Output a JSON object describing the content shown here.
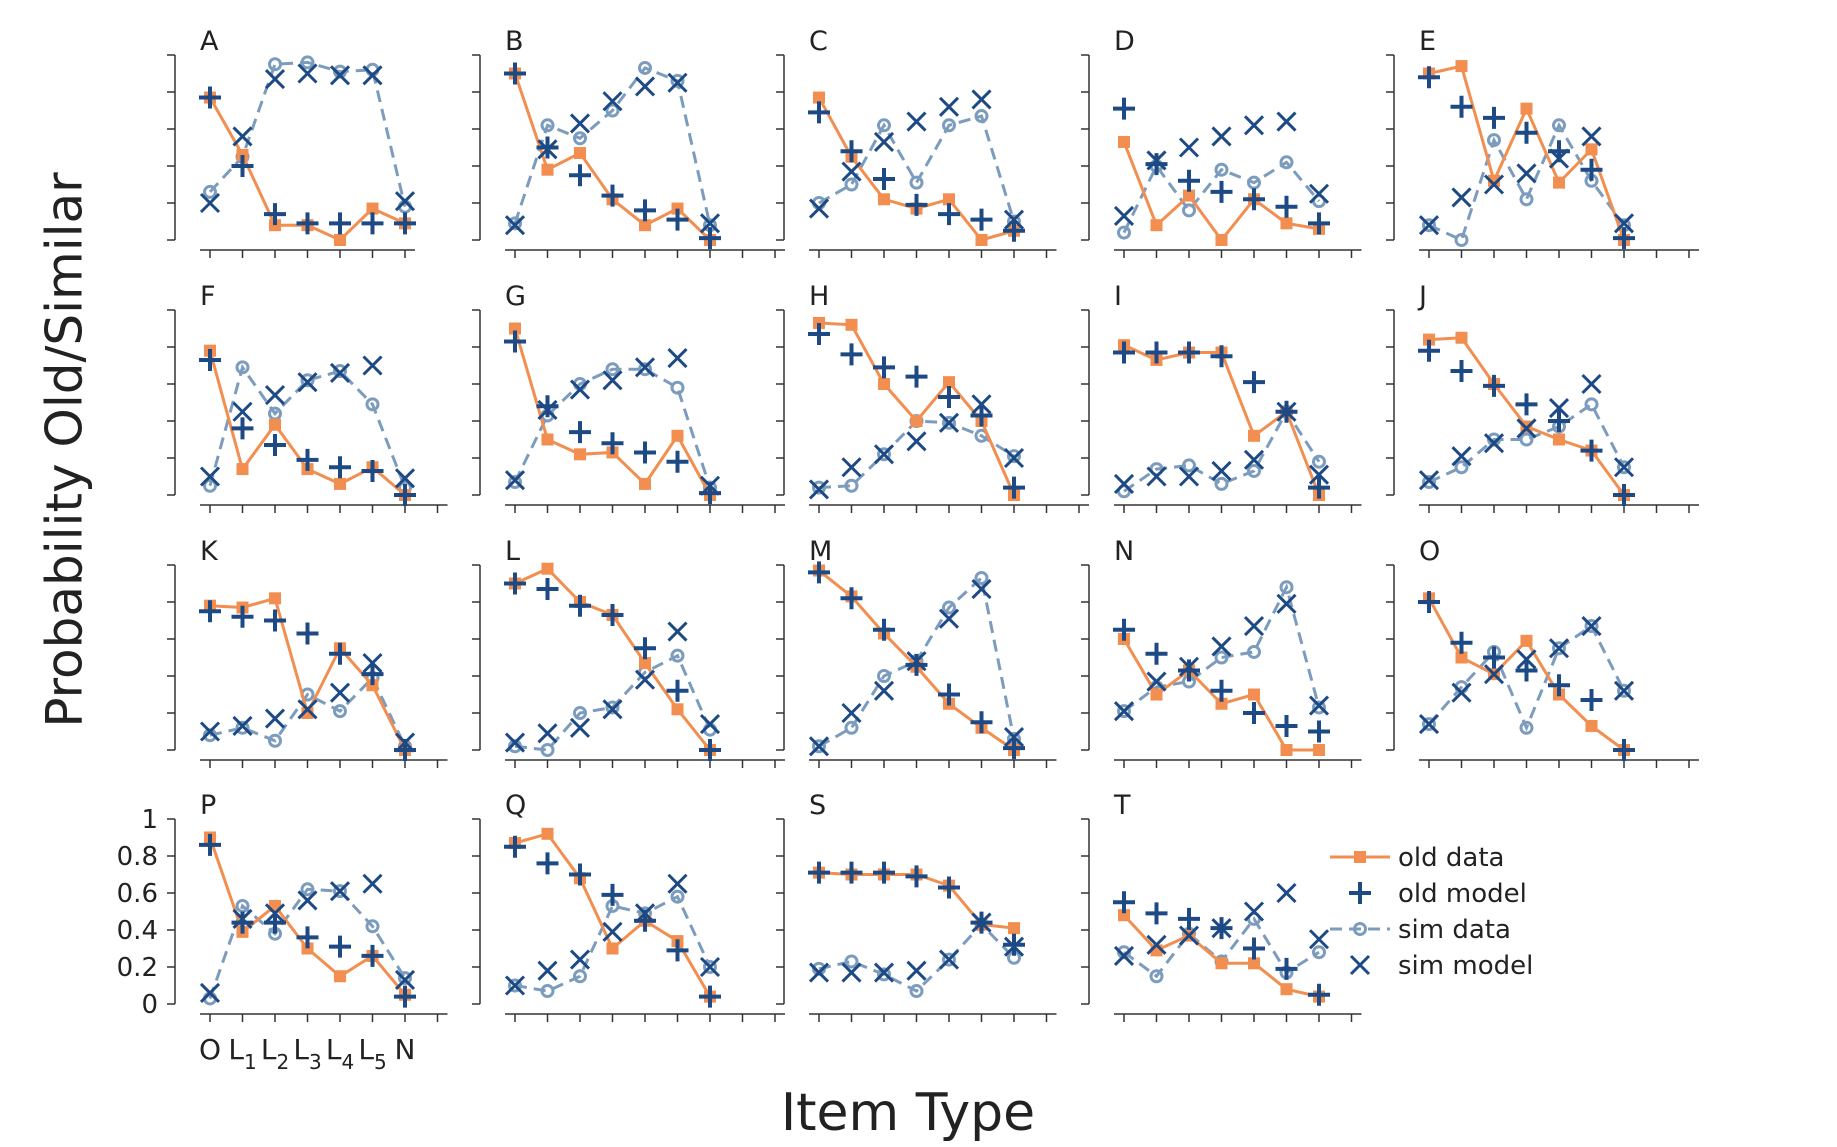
{
  "figure": {
    "ylabel": "Probability Old/Similar",
    "xlabel": "Item Type"
  },
  "legend": {
    "placement": "right of panel T",
    "entries": [
      {
        "key": "old_data",
        "label": "old data"
      },
      {
        "key": "old_model",
        "label": "old model"
      },
      {
        "key": "sim_data",
        "label": "sim data"
      },
      {
        "key": "sim_model",
        "label": "sim model"
      }
    ]
  },
  "styles": {
    "old_data": {
      "color": "#f28e4f",
      "line": "solid",
      "marker": "square"
    },
    "old_model": {
      "color": "#1d4a85",
      "marker": "plus"
    },
    "sim_data": {
      "color": "#7c9cbd",
      "line": "dashed",
      "marker": "circle-open"
    },
    "sim_model": {
      "color": "#1d4a85",
      "marker": "x"
    }
  },
  "chart_data": {
    "type": "line",
    "categories": [
      "O",
      "L1",
      "L2",
      "L3",
      "L4",
      "L5",
      "N"
    ],
    "tick_labels": [
      {
        "base": "O",
        "sub": ""
      },
      {
        "base": "L",
        "sub": "1"
      },
      {
        "base": "L",
        "sub": "2"
      },
      {
        "base": "L",
        "sub": "3"
      },
      {
        "base": "L",
        "sub": "4"
      },
      {
        "base": "L",
        "sub": "5"
      },
      {
        "base": "N",
        "sub": ""
      }
    ],
    "ylim": [
      0,
      1
    ],
    "yticks": [
      "0",
      "0.2",
      "0.4",
      "0.6",
      "0.8",
      "1"
    ],
    "grid": false,
    "panels": [
      {
        "label": "A",
        "n": 7,
        "old_data": [
          0.77,
          0.46,
          0.08,
          0.08,
          0.0,
          0.17,
          0.09
        ],
        "old_model": [
          0.77,
          0.4,
          0.14,
          0.09,
          0.09,
          0.09,
          0.09
        ],
        "sim_data": [
          0.26,
          0.45,
          0.95,
          0.96,
          0.91,
          0.92,
          0.18
        ],
        "sim_model": [
          0.2,
          0.56,
          0.87,
          0.9,
          0.89,
          0.89,
          0.21
        ]
      },
      {
        "label": "B",
        "n": 9,
        "old_data": [
          0.9,
          0.38,
          0.47,
          0.22,
          0.08,
          0.17,
          0.0
        ],
        "old_model": [
          0.9,
          0.5,
          0.35,
          0.24,
          0.16,
          0.11,
          0.01
        ],
        "sim_data": [
          0.09,
          0.62,
          0.55,
          0.7,
          0.93,
          0.86,
          0.08
        ],
        "sim_model": [
          0.08,
          0.49,
          0.63,
          0.75,
          0.83,
          0.85,
          0.09
        ]
      },
      {
        "label": "C",
        "n": 8,
        "old_data": [
          0.77,
          0.45,
          0.22,
          0.17,
          0.22,
          0.0,
          0.05
        ],
        "old_model": [
          0.69,
          0.48,
          0.33,
          0.19,
          0.14,
          0.11,
          0.05
        ],
        "sim_data": [
          0.2,
          0.3,
          0.62,
          0.31,
          0.62,
          0.67,
          0.1
        ],
        "sim_model": [
          0.17,
          0.37,
          0.53,
          0.64,
          0.72,
          0.76,
          0.11
        ]
      },
      {
        "label": "D",
        "n": 8,
        "old_data": [
          0.53,
          0.08,
          0.24,
          0.0,
          0.22,
          0.09,
          0.06
        ],
        "old_model": [
          0.71,
          0.41,
          0.32,
          0.26,
          0.22,
          0.18,
          0.09
        ],
        "sim_data": [
          0.04,
          0.4,
          0.16,
          0.38,
          0.31,
          0.42,
          0.21
        ],
        "sim_model": [
          0.13,
          0.43,
          0.5,
          0.56,
          0.62,
          0.64,
          0.25
        ]
      },
      {
        "label": "E",
        "n": 9,
        "old_data": [
          0.9,
          0.94,
          0.32,
          0.71,
          0.31,
          0.49,
          0.0
        ],
        "old_model": [
          0.88,
          0.72,
          0.66,
          0.58,
          0.48,
          0.38,
          0.01
        ],
        "sim_data": [
          0.08,
          0.0,
          0.54,
          0.22,
          0.62,
          0.32,
          0.08
        ],
        "sim_model": [
          0.08,
          0.23,
          0.3,
          0.36,
          0.44,
          0.56,
          0.09
        ]
      },
      {
        "label": "F",
        "n": 8,
        "old_data": [
          0.78,
          0.14,
          0.38,
          0.14,
          0.06,
          0.15,
          0.0
        ],
        "old_model": [
          0.73,
          0.36,
          0.27,
          0.19,
          0.15,
          0.13,
          0.0
        ],
        "sim_data": [
          0.05,
          0.69,
          0.44,
          0.62,
          0.67,
          0.49,
          0.04
        ],
        "sim_model": [
          0.1,
          0.45,
          0.54,
          0.61,
          0.66,
          0.7,
          0.09
        ]
      },
      {
        "label": "G",
        "n": 9,
        "old_data": [
          0.9,
          0.3,
          0.22,
          0.23,
          0.06,
          0.32,
          0.0
        ],
        "old_model": [
          0.83,
          0.48,
          0.34,
          0.28,
          0.23,
          0.18,
          0.01
        ],
        "sim_data": [
          0.07,
          0.43,
          0.6,
          0.68,
          0.68,
          0.58,
          0.04
        ],
        "sim_model": [
          0.08,
          0.46,
          0.57,
          0.62,
          0.69,
          0.74,
          0.05
        ]
      },
      {
        "label": "H",
        "n": 9,
        "old_data": [
          0.93,
          0.92,
          0.6,
          0.4,
          0.61,
          0.4,
          0.0
        ],
        "old_model": [
          0.87,
          0.76,
          0.69,
          0.64,
          0.53,
          0.43,
          0.04
        ],
        "sim_data": [
          0.04,
          0.05,
          0.22,
          0.4,
          0.39,
          0.32,
          0.21
        ],
        "sim_model": [
          0.03,
          0.15,
          0.22,
          0.29,
          0.39,
          0.49,
          0.2
        ]
      },
      {
        "label": "I",
        "n": 8,
        "old_data": [
          0.81,
          0.73,
          0.77,
          0.77,
          0.32,
          0.45,
          0.0
        ],
        "old_model": [
          0.77,
          0.77,
          0.77,
          0.75,
          0.61,
          0.45,
          0.04
        ],
        "sim_data": [
          0.02,
          0.14,
          0.16,
          0.06,
          0.13,
          0.45,
          0.18
        ],
        "sim_model": [
          0.06,
          0.1,
          0.1,
          0.13,
          0.19,
          0.45,
          0.11
        ]
      },
      {
        "label": "J",
        "n": 9,
        "old_data": [
          0.84,
          0.85,
          0.6,
          0.37,
          0.3,
          0.24,
          0.0
        ],
        "old_model": [
          0.78,
          0.67,
          0.59,
          0.49,
          0.4,
          0.24,
          0.0
        ],
        "sim_data": [
          0.07,
          0.15,
          0.3,
          0.3,
          0.37,
          0.49,
          0.15
        ],
        "sim_model": [
          0.08,
          0.21,
          0.28,
          0.36,
          0.47,
          0.6,
          0.15
        ]
      },
      {
        "label": "K",
        "n": 8,
        "old_data": [
          0.78,
          0.77,
          0.82,
          0.2,
          0.55,
          0.35,
          0.0
        ],
        "old_model": [
          0.75,
          0.72,
          0.7,
          0.63,
          0.52,
          0.41,
          0.0
        ],
        "sim_data": [
          0.08,
          0.12,
          0.05,
          0.3,
          0.21,
          0.39,
          0.02
        ],
        "sim_model": [
          0.1,
          0.13,
          0.17,
          0.22,
          0.31,
          0.47,
          0.04
        ]
      },
      {
        "label": "L",
        "n": 9,
        "old_data": [
          0.9,
          0.98,
          0.8,
          0.73,
          0.47,
          0.22,
          0.0
        ],
        "old_model": [
          0.9,
          0.87,
          0.78,
          0.73,
          0.55,
          0.32,
          0.0
        ],
        "sim_data": [
          0.02,
          0.0,
          0.2,
          0.23,
          0.42,
          0.51,
          0.11
        ],
        "sim_model": [
          0.04,
          0.09,
          0.12,
          0.22,
          0.38,
          0.64,
          0.14
        ]
      },
      {
        "label": "M",
        "n": 8,
        "old_data": [
          0.97,
          0.83,
          0.63,
          0.45,
          0.25,
          0.12,
          0.0
        ],
        "old_model": [
          0.96,
          0.82,
          0.65,
          0.46,
          0.3,
          0.15,
          0.01
        ],
        "sim_data": [
          0.02,
          0.12,
          0.4,
          0.48,
          0.77,
          0.93,
          0.06
        ],
        "sim_model": [
          0.02,
          0.2,
          0.32,
          0.48,
          0.71,
          0.87,
          0.07
        ]
      },
      {
        "label": "N",
        "n": 8,
        "old_data": [
          0.6,
          0.3,
          0.43,
          0.25,
          0.3,
          0.0,
          0.0
        ],
        "old_model": [
          0.65,
          0.52,
          0.43,
          0.32,
          0.2,
          0.13,
          0.1
        ],
        "sim_data": [
          0.21,
          0.34,
          0.37,
          0.5,
          0.53,
          0.88,
          0.23
        ],
        "sim_model": [
          0.21,
          0.37,
          0.45,
          0.56,
          0.67,
          0.79,
          0.24
        ]
      },
      {
        "label": "O",
        "n": 9,
        "old_data": [
          0.82,
          0.5,
          0.41,
          0.59,
          0.3,
          0.13,
          0.0
        ],
        "old_model": [
          0.8,
          0.58,
          0.5,
          0.43,
          0.35,
          0.27,
          0.0
        ],
        "sim_data": [
          0.14,
          0.34,
          0.53,
          0.12,
          0.55,
          0.67,
          0.32
        ],
        "sim_model": [
          0.14,
          0.31,
          0.41,
          0.49,
          0.55,
          0.67,
          0.32
        ]
      },
      {
        "label": "P",
        "n": 8,
        "old_data": [
          0.9,
          0.39,
          0.53,
          0.3,
          0.15,
          0.26,
          0.05
        ],
        "old_model": [
          0.86,
          0.44,
          0.44,
          0.36,
          0.31,
          0.26,
          0.04
        ],
        "sim_data": [
          0.03,
          0.53,
          0.38,
          0.62,
          0.61,
          0.42,
          0.14
        ],
        "sim_model": [
          0.06,
          0.46,
          0.49,
          0.56,
          0.61,
          0.65,
          0.13
        ]
      },
      {
        "label": "Q",
        "n": 9,
        "old_data": [
          0.87,
          0.92,
          0.68,
          0.3,
          0.45,
          0.34,
          0.04
        ],
        "old_model": [
          0.85,
          0.76,
          0.7,
          0.59,
          0.45,
          0.29,
          0.04
        ],
        "sim_data": [
          0.1,
          0.07,
          0.15,
          0.53,
          0.49,
          0.58,
          0.2
        ],
        "sim_model": [
          0.1,
          0.18,
          0.24,
          0.39,
          0.49,
          0.65,
          0.2
        ]
      },
      {
        "label": "S",
        "n": 8,
        "old_data": [
          0.71,
          0.7,
          0.7,
          0.7,
          0.64,
          0.43,
          0.41
        ],
        "old_model": [
          0.71,
          0.71,
          0.71,
          0.69,
          0.63,
          0.44,
          0.32
        ],
        "sim_data": [
          0.19,
          0.23,
          0.16,
          0.07,
          0.24,
          0.43,
          0.25
        ],
        "sim_model": [
          0.17,
          0.17,
          0.17,
          0.18,
          0.24,
          0.44,
          0.31
        ]
      },
      {
        "label": "T",
        "n": 8,
        "old_data": [
          0.48,
          0.29,
          0.37,
          0.22,
          0.22,
          0.08,
          0.04
        ],
        "old_model": [
          0.55,
          0.49,
          0.46,
          0.41,
          0.3,
          0.19,
          0.05
        ],
        "sim_data": [
          0.28,
          0.15,
          0.38,
          0.23,
          0.46,
          0.17,
          0.28
        ],
        "sim_model": [
          0.26,
          0.32,
          0.37,
          0.41,
          0.5,
          0.6,
          0.35
        ]
      }
    ]
  }
}
